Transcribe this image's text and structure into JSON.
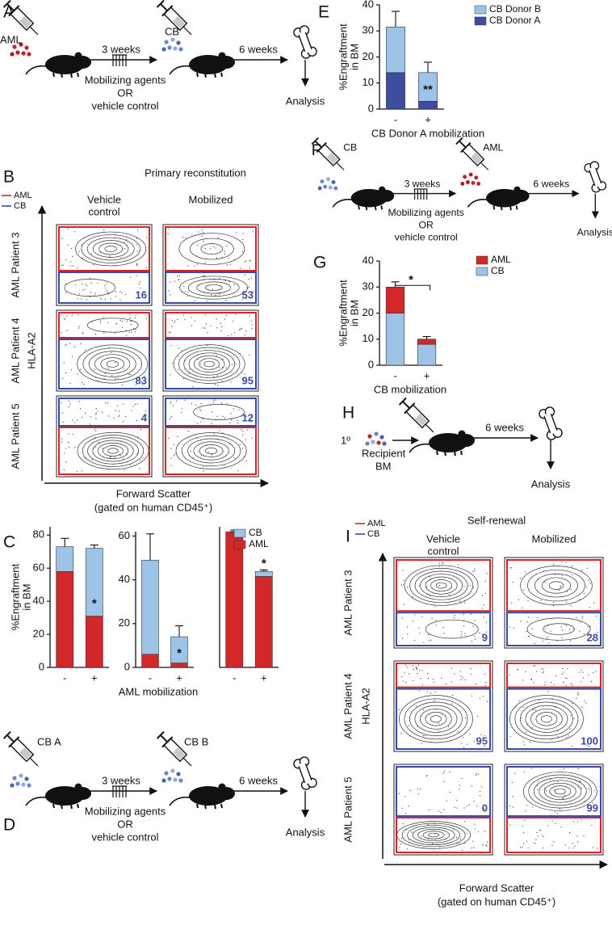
{
  "panel_a": {
    "letter": "A",
    "first": "AML",
    "interval": "3 weeks",
    "second": "CB",
    "treatment": [
      "Mobilizing agents",
      "OR",
      "vehicle control"
    ],
    "interval2": "6 weeks",
    "readout": "Analysis"
  },
  "panel_b": {
    "letter": "B",
    "title": "Primary reconstitution",
    "legend": [
      {
        "name": "AML",
        "color": "#d9232a"
      },
      {
        "name": "CB",
        "color": "#3a4aa0"
      }
    ],
    "columns": [
      [
        "Vehicle",
        "control"
      ],
      [
        "Mobilized"
      ]
    ],
    "rows": [
      "AML Patient 3",
      "AML Patient 4",
      "AML Patient 5"
    ],
    "y_label": "HLA-A2",
    "x_label": [
      "Forward Scatter",
      "(gated on human CD45⁺)"
    ],
    "cb_percent": [
      [
        16,
        53
      ],
      [
        83,
        95
      ],
      [
        4,
        12
      ]
    ]
  },
  "panel_d": {
    "letter": "D",
    "first": "CB A",
    "interval": "3 weeks",
    "second": "CB B",
    "treatment": [
      "Mobilizing agents",
      "OR",
      "vehicle control"
    ],
    "interval2": "6 weeks",
    "readout": "Analysis"
  },
  "panel_f": {
    "letter": "F",
    "first": "CB",
    "interval": "3 weeks",
    "second": "AML",
    "treatment": [
      "Mobilizing agents",
      "OR",
      "vehicle control"
    ],
    "interval2": "6 weeks",
    "readout": "Analysis"
  },
  "panel_h": {
    "letter": "H",
    "round": "1º",
    "source": [
      "Recipient",
      "BM"
    ],
    "interval": "6 weeks",
    "readout": "Analysis"
  },
  "panel_i": {
    "letter": "I",
    "title": "Self-renewal",
    "legend": [
      {
        "name": "AML",
        "color": "#d9232a"
      },
      {
        "name": "CB",
        "color": "#3a4aa0"
      }
    ],
    "columns": [
      [
        "Vehicle",
        "control"
      ],
      [
        "Mobilized"
      ]
    ],
    "rows": [
      "AML Patient 3",
      "AML Patient 4",
      "AML Patient 5"
    ],
    "y_label": "HLA-A2",
    "x_label": [
      "Forward Scatter",
      "(gated on human CD45⁺)"
    ],
    "cb_percent": [
      [
        9,
        28
      ],
      [
        95,
        100
      ],
      [
        0,
        99
      ]
    ]
  },
  "chart_data": [
    {
      "type": "bar",
      "panel": "C",
      "ylabel": [
        "%Engraftment",
        "in BM"
      ],
      "categories": [
        "-",
        "+"
      ],
      "ylim": [
        0,
        85
      ],
      "yticks": [
        0,
        20,
        40,
        60,
        80
      ],
      "series": [
        {
          "color": "#d3282a",
          "values": [
            58,
            31
          ],
          "errors": [
            2,
            3
          ]
        },
        {
          "color": "#9dc3e6",
          "values": [
            15,
            41
          ],
          "errors": [
            5,
            2
          ]
        }
      ],
      "annotations": [
        {
          "text": "*",
          "x": "+"
        }
      ]
    },
    {
      "type": "bar",
      "xlabel": "AML mobilization",
      "categories": [
        "-",
        "+"
      ],
      "ylim": [
        0,
        62
      ],
      "yticks": [
        0,
        20,
        40,
        60
      ],
      "series": [
        {
          "color": "#d3282a",
          "values": [
            6,
            2
          ],
          "errors": [
            3,
            1
          ]
        },
        {
          "color": "#9dc3e6",
          "values": [
            43,
            12
          ],
          "errors": [
            12,
            5
          ]
        }
      ],
      "annotations": [
        {
          "text": "*",
          "x": "+"
        }
      ]
    },
    {
      "type": "bar",
      "categories": [
        "-",
        "+"
      ],
      "ylim": [
        0,
        85
      ],
      "series": [
        {
          "name": "AML",
          "color": "#d3282a",
          "values": [
            82,
            55
          ],
          "errors": [
            1,
            3
          ]
        },
        {
          "name": "CB",
          "color": "#9dc3e6",
          "values": [
            0,
            3
          ],
          "errors": [
            0,
            1
          ]
        }
      ],
      "annotations": [
        {
          "text": "*",
          "x": "+"
        }
      ]
    },
    {
      "type": "bar",
      "panel": "E",
      "ylabel": [
        "%Engraftment",
        "in BM"
      ],
      "xlabel": "CB Donor A mobilization",
      "categories": [
        "-",
        "+"
      ],
      "ylim": [
        0,
        40
      ],
      "yticks": [
        0,
        10,
        20,
        30,
        40
      ],
      "series": [
        {
          "name": "CB Donor A",
          "color": "#3d4ea0",
          "values": [
            14,
            3
          ],
          "errors": [
            1.5,
            1.5
          ]
        },
        {
          "name": "CB Donor B",
          "color": "#9dc3e6",
          "values": [
            17.5,
            11
          ],
          "errors": [
            6,
            4
          ]
        }
      ],
      "annotations": [
        {
          "text": "**",
          "x": "+"
        }
      ]
    },
    {
      "type": "bar",
      "panel": "G",
      "ylabel": [
        "%Engraftment",
        "in BM"
      ],
      "xlabel": "CB mobilization",
      "categories": [
        "-",
        "+"
      ],
      "ylim": [
        0,
        40
      ],
      "yticks": [
        0,
        10,
        20,
        30,
        40
      ],
      "series": [
        {
          "name": "CB",
          "color": "#9dc3e6",
          "values": [
            20,
            8
          ],
          "errors": [
            4,
            1
          ]
        },
        {
          "name": "AML",
          "color": "#d3282a",
          "values": [
            10,
            2
          ],
          "errors": [
            2,
            1
          ]
        }
      ],
      "annotations": [
        {
          "text": "*",
          "x": "+",
          "bracket": true
        }
      ]
    }
  ]
}
